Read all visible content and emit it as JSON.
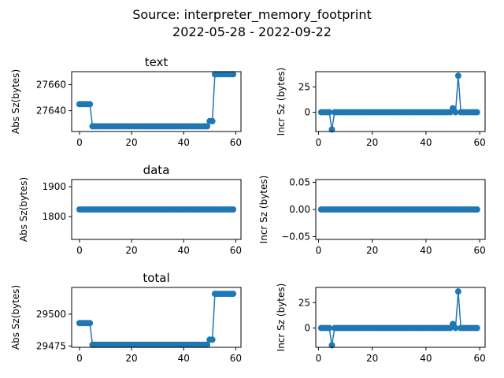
{
  "figure": {
    "title_line1": "Source: interpreter_memory_footprint",
    "title_line2": "2022-05-28 - 2022-09-22",
    "series_color": "#1f77b4"
  },
  "chart_data": [
    {
      "type": "line",
      "title": "text",
      "ylabel": "Abs Sz(bytes)",
      "xlim": [
        -3,
        62
      ],
      "ylim": [
        27624,
        27670
      ],
      "xticks": [
        0,
        20,
        40,
        60
      ],
      "yticks": [
        27640,
        27660
      ],
      "x": [
        0,
        1,
        2,
        3,
        4,
        5,
        6,
        7,
        8,
        9,
        10,
        11,
        12,
        13,
        14,
        15,
        16,
        17,
        18,
        19,
        20,
        21,
        22,
        23,
        24,
        25,
        26,
        27,
        28,
        29,
        30,
        31,
        32,
        33,
        34,
        35,
        36,
        37,
        38,
        39,
        40,
        41,
        42,
        43,
        44,
        45,
        46,
        47,
        48,
        49,
        50,
        51,
        52,
        53,
        54,
        55,
        56,
        57,
        58,
        59
      ],
      "values": [
        27645,
        27645,
        27645,
        27645,
        27645,
        27628,
        27628,
        27628,
        27628,
        27628,
        27628,
        27628,
        27628,
        27628,
        27628,
        27628,
        27628,
        27628,
        27628,
        27628,
        27628,
        27628,
        27628,
        27628,
        27628,
        27628,
        27628,
        27628,
        27628,
        27628,
        27628,
        27628,
        27628,
        27628,
        27628,
        27628,
        27628,
        27628,
        27628,
        27628,
        27628,
        27628,
        27628,
        27628,
        27628,
        27628,
        27628,
        27628,
        27628,
        27628,
        27632,
        27632,
        27668,
        27668,
        27668,
        27668,
        27668,
        27668,
        27668,
        27668
      ]
    },
    {
      "type": "line",
      "title": "",
      "ylabel": "Incr Sz (bytes)",
      "xlim": [
        -1,
        62
      ],
      "ylim": [
        -19,
        40
      ],
      "xticks": [
        0,
        20,
        40,
        60
      ],
      "yticks": [
        0,
        25
      ],
      "x": [
        1,
        2,
        3,
        4,
        5,
        6,
        7,
        8,
        9,
        10,
        11,
        12,
        13,
        14,
        15,
        16,
        17,
        18,
        19,
        20,
        21,
        22,
        23,
        24,
        25,
        26,
        27,
        28,
        29,
        30,
        31,
        32,
        33,
        34,
        35,
        36,
        37,
        38,
        39,
        40,
        41,
        42,
        43,
        44,
        45,
        46,
        47,
        48,
        49,
        50,
        51,
        52,
        53,
        54,
        55,
        56,
        57,
        58,
        59
      ],
      "values": [
        0,
        0,
        0,
        0,
        -17,
        0,
        0,
        0,
        0,
        0,
        0,
        0,
        0,
        0,
        0,
        0,
        0,
        0,
        0,
        0,
        0,
        0,
        0,
        0,
        0,
        0,
        0,
        0,
        0,
        0,
        0,
        0,
        0,
        0,
        0,
        0,
        0,
        0,
        0,
        0,
        0,
        0,
        0,
        0,
        0,
        0,
        0,
        0,
        0,
        4,
        0,
        36,
        0,
        0,
        0,
        0,
        0,
        0,
        0
      ]
    },
    {
      "type": "line",
      "title": "data",
      "ylabel": "Abs Sz(bytes)",
      "xlim": [
        -3,
        62
      ],
      "ylim": [
        1724,
        1924
      ],
      "xticks": [
        0,
        20,
        40,
        60
      ],
      "yticks": [
        1800,
        1900
      ],
      "x": [
        0,
        1,
        2,
        3,
        4,
        5,
        6,
        7,
        8,
        9,
        10,
        11,
        12,
        13,
        14,
        15,
        16,
        17,
        18,
        19,
        20,
        21,
        22,
        23,
        24,
        25,
        26,
        27,
        28,
        29,
        30,
        31,
        32,
        33,
        34,
        35,
        36,
        37,
        38,
        39,
        40,
        41,
        42,
        43,
        44,
        45,
        46,
        47,
        48,
        49,
        50,
        51,
        52,
        53,
        54,
        55,
        56,
        57,
        58,
        59
      ],
      "values": [
        1824,
        1824,
        1824,
        1824,
        1824,
        1824,
        1824,
        1824,
        1824,
        1824,
        1824,
        1824,
        1824,
        1824,
        1824,
        1824,
        1824,
        1824,
        1824,
        1824,
        1824,
        1824,
        1824,
        1824,
        1824,
        1824,
        1824,
        1824,
        1824,
        1824,
        1824,
        1824,
        1824,
        1824,
        1824,
        1824,
        1824,
        1824,
        1824,
        1824,
        1824,
        1824,
        1824,
        1824,
        1824,
        1824,
        1824,
        1824,
        1824,
        1824,
        1824,
        1824,
        1824,
        1824,
        1824,
        1824,
        1824,
        1824,
        1824,
        1824
      ]
    },
    {
      "type": "line",
      "title": "",
      "ylabel": "Incr Sz (bytes)",
      "xlim": [
        -1,
        62
      ],
      "ylim": [
        -0.055,
        0.055
      ],
      "xticks": [
        0,
        20,
        40,
        60
      ],
      "yticks": [
        -0.05,
        0.0,
        0.05
      ],
      "ytick_labels": [
        "−0.05",
        "0.00",
        "0.05"
      ],
      "x": [
        1,
        2,
        3,
        4,
        5,
        6,
        7,
        8,
        9,
        10,
        11,
        12,
        13,
        14,
        15,
        16,
        17,
        18,
        19,
        20,
        21,
        22,
        23,
        24,
        25,
        26,
        27,
        28,
        29,
        30,
        31,
        32,
        33,
        34,
        35,
        36,
        37,
        38,
        39,
        40,
        41,
        42,
        43,
        44,
        45,
        46,
        47,
        48,
        49,
        50,
        51,
        52,
        53,
        54,
        55,
        56,
        57,
        58,
        59
      ],
      "values": [
        0,
        0,
        0,
        0,
        0,
        0,
        0,
        0,
        0,
        0,
        0,
        0,
        0,
        0,
        0,
        0,
        0,
        0,
        0,
        0,
        0,
        0,
        0,
        0,
        0,
        0,
        0,
        0,
        0,
        0,
        0,
        0,
        0,
        0,
        0,
        0,
        0,
        0,
        0,
        0,
        0,
        0,
        0,
        0,
        0,
        0,
        0,
        0,
        0,
        0,
        0,
        0,
        0,
        0,
        0,
        0,
        0,
        0,
        0
      ]
    },
    {
      "type": "line",
      "title": "total",
      "ylabel": "Abs Sz(bytes)",
      "xlim": [
        -3,
        62
      ],
      "ylim": [
        29474,
        29521
      ],
      "xticks": [
        0,
        20,
        40,
        60
      ],
      "yticks": [
        29475,
        29500
      ],
      "x": [
        0,
        1,
        2,
        3,
        4,
        5,
        6,
        7,
        8,
        9,
        10,
        11,
        12,
        13,
        14,
        15,
        16,
        17,
        18,
        19,
        20,
        21,
        22,
        23,
        24,
        25,
        26,
        27,
        28,
        29,
        30,
        31,
        32,
        33,
        34,
        35,
        36,
        37,
        38,
        39,
        40,
        41,
        42,
        43,
        44,
        45,
        46,
        47,
        48,
        49,
        50,
        51,
        52,
        53,
        54,
        55,
        56,
        57,
        58,
        59
      ],
      "values": [
        29493,
        29493,
        29493,
        29493,
        29493,
        29476,
        29476,
        29476,
        29476,
        29476,
        29476,
        29476,
        29476,
        29476,
        29476,
        29476,
        29476,
        29476,
        29476,
        29476,
        29476,
        29476,
        29476,
        29476,
        29476,
        29476,
        29476,
        29476,
        29476,
        29476,
        29476,
        29476,
        29476,
        29476,
        29476,
        29476,
        29476,
        29476,
        29476,
        29476,
        29476,
        29476,
        29476,
        29476,
        29476,
        29476,
        29476,
        29476,
        29476,
        29476,
        29480,
        29480,
        29516,
        29516,
        29516,
        29516,
        29516,
        29516,
        29516,
        29516
      ]
    },
    {
      "type": "line",
      "title": "",
      "ylabel": "Incr Sz (bytes)",
      "xlim": [
        -1,
        62
      ],
      "ylim": [
        -19,
        40
      ],
      "xticks": [
        0,
        20,
        40,
        60
      ],
      "yticks": [
        0,
        25
      ],
      "x": [
        1,
        2,
        3,
        4,
        5,
        6,
        7,
        8,
        9,
        10,
        11,
        12,
        13,
        14,
        15,
        16,
        17,
        18,
        19,
        20,
        21,
        22,
        23,
        24,
        25,
        26,
        27,
        28,
        29,
        30,
        31,
        32,
        33,
        34,
        35,
        36,
        37,
        38,
        39,
        40,
        41,
        42,
        43,
        44,
        45,
        46,
        47,
        48,
        49,
        50,
        51,
        52,
        53,
        54,
        55,
        56,
        57,
        58,
        59
      ],
      "values": [
        0,
        0,
        0,
        0,
        -17,
        0,
        0,
        0,
        0,
        0,
        0,
        0,
        0,
        0,
        0,
        0,
        0,
        0,
        0,
        0,
        0,
        0,
        0,
        0,
        0,
        0,
        0,
        0,
        0,
        0,
        0,
        0,
        0,
        0,
        0,
        0,
        0,
        0,
        0,
        0,
        0,
        0,
        0,
        0,
        0,
        0,
        0,
        0,
        0,
        4,
        0,
        36,
        0,
        0,
        0,
        0,
        0,
        0,
        0
      ]
    }
  ]
}
